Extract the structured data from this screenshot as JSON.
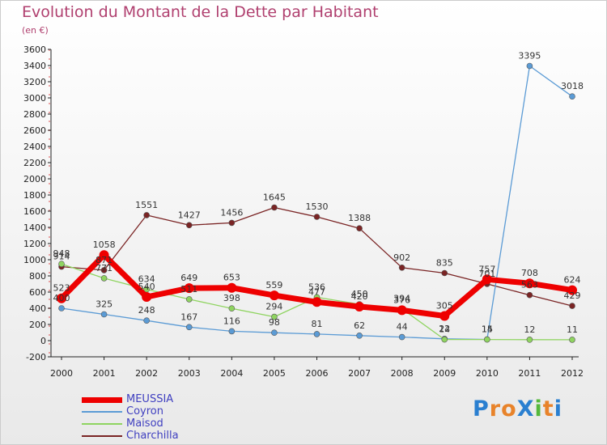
{
  "title": "Evolution du Montant de la Dette par Habitant",
  "unit_label": "(en €)",
  "logo": {
    "text": "ProXiti",
    "letters": [
      "P",
      "r",
      "o",
      "X",
      "i",
      "t",
      "i"
    ],
    "colors": [
      "#2a7fd0",
      "#e8832a",
      "#e8832a",
      "#2a7fd0",
      "#55b83c",
      "#e8832a",
      "#2a7fd0"
    ]
  },
  "chart_data": {
    "type": "line",
    "x": [
      "2000",
      "2001",
      "2002",
      "2003",
      "2004",
      "2005",
      "2006",
      "2007",
      "2008",
      "2009",
      "2010",
      "2011",
      "2012"
    ],
    "ylim": [
      -200,
      3600
    ],
    "yticks": [
      "-200",
      "0",
      "200",
      "400",
      "600",
      "800",
      "1000",
      "1200",
      "1400",
      "1600",
      "1800",
      "2000",
      "2200",
      "2400",
      "2600",
      "2800",
      "3000",
      "3200",
      "3400",
      "3600"
    ],
    "grid": false,
    "legend_position": "bottom-left",
    "series": [
      {
        "name": "MEUSSIA",
        "color": "#ee0000",
        "values": [
          523,
          1058,
          540,
          649,
          653,
          559,
          477,
          420,
          376,
          305,
          757,
          708,
          624
        ],
        "labels": [
          "523",
          "1058",
          "540",
          "649",
          "653",
          "559",
          "477",
          "420",
          "376",
          "305",
          "757",
          "708",
          "624"
        ]
      },
      {
        "name": "Coyron",
        "color": "#5b9bd5",
        "values": [
          400,
          325,
          248,
          167,
          116,
          98,
          81,
          62,
          44,
          22,
          15,
          3395,
          3018
        ],
        "labels": [
          "400",
          "325",
          "248",
          "167",
          "116",
          "98",
          "81",
          "62",
          "44",
          "22",
          "15",
          "3395",
          "3018"
        ]
      },
      {
        "name": "Maisod",
        "color": "#8fd460",
        "values": [
          948,
          771,
          634,
          511,
          398,
          294,
          536,
          450,
          394,
          14,
          14,
          12,
          11
        ],
        "labels": [
          "948",
          "771",
          "634",
          "511",
          "398",
          "294",
          "536",
          "450",
          "394",
          "14",
          "14",
          "12",
          "11"
        ]
      },
      {
        "name": "Charchilla",
        "color": "#7a2424",
        "values": [
          914,
          871,
          1551,
          1427,
          1456,
          1645,
          1530,
          1388,
          902,
          835,
          701,
          563,
          429
        ],
        "labels": [
          "914",
          "871",
          "1551",
          "1427",
          "1456",
          "1645",
          "1530",
          "1388",
          "902",
          "835",
          "701",
          "563",
          "429"
        ]
      }
    ]
  }
}
